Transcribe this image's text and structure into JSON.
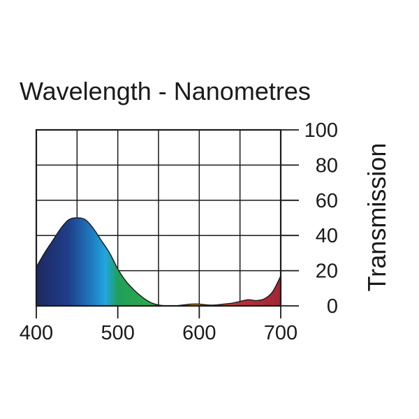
{
  "chart_data": {
    "type": "area",
    "title": "Wavelength - Nanometres",
    "xlabel": "",
    "ylabel": "Transmission",
    "xlim": [
      400,
      700
    ],
    "ylim": [
      0,
      100
    ],
    "x_ticks": [
      400,
      500,
      600,
      700
    ],
    "y_ticks": [
      100,
      80,
      60,
      40,
      20,
      0
    ],
    "grid": true,
    "series": [
      {
        "x": [
          400,
          410,
          420,
          430,
          440,
          450,
          460,
          470,
          480,
          490,
          500,
          510,
          520,
          530,
          540,
          550,
          560,
          570,
          580,
          590,
          600,
          610,
          620,
          630,
          640,
          650,
          660,
          670,
          680,
          690,
          700
        ],
        "y": [
          22,
          30,
          37,
          44,
          49,
          50,
          49,
          44,
          37,
          30,
          21,
          14,
          9,
          5,
          2,
          0.5,
          0,
          0,
          0.5,
          1,
          1,
          0.5,
          0.5,
          1,
          1.5,
          2.5,
          3.5,
          3,
          4,
          8,
          17
        ]
      }
    ],
    "fill_gradient": [
      {
        "wavelength": 400,
        "color": "#1e2860"
      },
      {
        "wavelength": 440,
        "color": "#1f3f8a"
      },
      {
        "wavelength": 470,
        "color": "#1f80c4"
      },
      {
        "wavelength": 485,
        "color": "#22a6e0"
      },
      {
        "wavelength": 500,
        "color": "#1fa05a"
      },
      {
        "wavelength": 540,
        "color": "#2ea84a"
      },
      {
        "wavelength": 570,
        "color": "#6fbf3a"
      },
      {
        "wavelength": 590,
        "color": "#e8a020"
      },
      {
        "wavelength": 620,
        "color": "#d06a2a"
      },
      {
        "wavelength": 650,
        "color": "#b8303a"
      },
      {
        "wavelength": 700,
        "color": "#a02838"
      }
    ]
  }
}
